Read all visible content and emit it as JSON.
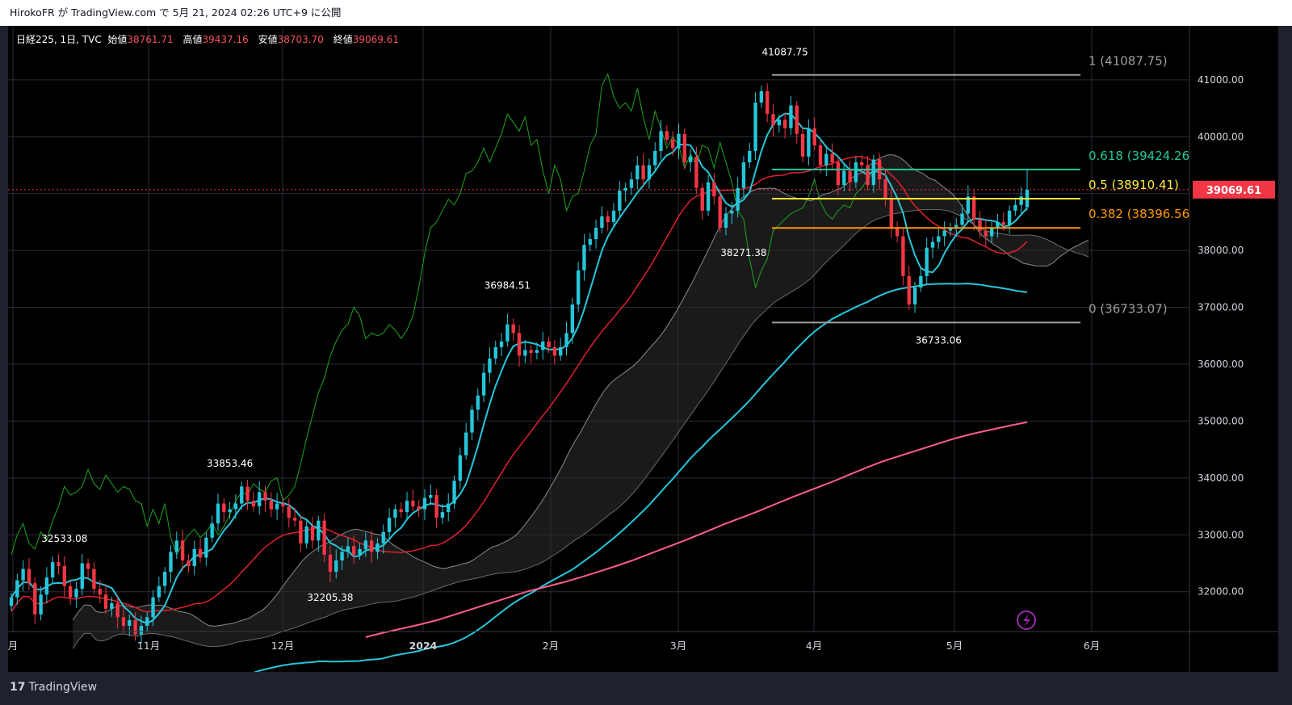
{
  "header": {
    "text": "HirokoFR が TradingView.com で 5月 21, 2024 02:26 UTC+9 に公開"
  },
  "ohlc": {
    "symbol": "日経225, 1日, TVC",
    "open_label": "始値",
    "open": "38761.71",
    "high_label": "高値",
    "high": "39437.16",
    "low_label": "安値",
    "low": "38703.70",
    "close_label": "終値",
    "close": "39069.61"
  },
  "footer": {
    "brand": "TradingView",
    "logo_mark": "17"
  },
  "colors": {
    "background": "#000000",
    "grid": "#2a2e39",
    "up": "#26c6da",
    "down": "#f23645",
    "kijun": "#e0202f",
    "tenkan": "#26c6da",
    "chikou": "#1ea51e",
    "ma_short": "#26c6da",
    "ma_long": "#ff5c8a",
    "fib_1": "#9e9e9e",
    "fib_618": "#22c99a",
    "fib_5": "#ffeb3b",
    "fib_382": "#ff9800",
    "fib_0": "#9e9e9e",
    "price_tag": "#f23645"
  },
  "chart_data": {
    "type": "candlestick",
    "title": "日経225, 1日, TVC",
    "y_axis": {
      "ticks": [
        "41000.00",
        "40000.00",
        "39000.00",
        "38000.00",
        "37000.00",
        "36000.00",
        "35000.00",
        "34000.00",
        "33000.00",
        "32000.00"
      ],
      "range": [
        31300,
        41950
      ]
    },
    "x_axis": {
      "ticks": [
        "月",
        "11月",
        "12月",
        "2024",
        "2月",
        "3月",
        "4月",
        "5月",
        "6月"
      ]
    },
    "last_price": "39069.61",
    "annotations": [
      {
        "text": "41087.75",
        "date_index": 131,
        "price": 41087.75,
        "anchor": "high"
      },
      {
        "text": "38271.38",
        "date_index": 124,
        "price": 38271.38,
        "anchor": "low"
      },
      {
        "text": "36984.51",
        "date_index": 84,
        "price": 36984.51,
        "anchor": "high"
      },
      {
        "text": "33853.46",
        "date_index": 37,
        "price": 33853.46,
        "anchor": "high"
      },
      {
        "text": "32533.08",
        "date_index": 9,
        "price": 32533.08,
        "anchor": "high"
      },
      {
        "text": "32205.38",
        "date_index": 54,
        "price": 32205.38,
        "anchor": "low"
      },
      {
        "text": "36733.06",
        "date_index": 157,
        "price": 36733.06,
        "anchor": "low"
      }
    ],
    "fibonacci": [
      {
        "label": "1 (41087.75)",
        "value": 41087.75,
        "color": "#9e9e9e"
      },
      {
        "label": "0.618 (39424.26",
        "value": 39424.26,
        "color": "#22c99a"
      },
      {
        "label": "0.5 (38910.41)",
        "value": 38910.41,
        "color": "#ffeb3b"
      },
      {
        "label": "0.382 (38396.56",
        "value": 38396.56,
        "color": "#ff9800"
      },
      {
        "label": "0 (36733.07)",
        "value": 36733.07,
        "color": "#9e9e9e"
      }
    ],
    "closes": [
      31900,
      32200,
      32400,
      32150,
      31600,
      31950,
      32250,
      32520,
      32450,
      32100,
      31900,
      32050,
      32500,
      32400,
      32050,
      31950,
      31700,
      31800,
      31550,
      31400,
      31500,
      31250,
      31400,
      31550,
      31900,
      32100,
      32350,
      32700,
      32900,
      32550,
      32450,
      32750,
      32600,
      32950,
      33200,
      33550,
      33400,
      33450,
      33550,
      33850,
      33600,
      33500,
      33750,
      33600,
      33450,
      33550,
      33500,
      33300,
      33250,
      32850,
      33150,
      32900,
      33250,
      32650,
      32350,
      32550,
      32700,
      32800,
      32650,
      32750,
      32900,
      32700,
      32850,
      33050,
      33300,
      33450,
      33400,
      33600,
      33500,
      33450,
      33650,
      33700,
      33300,
      33400,
      33550,
      33950,
      34400,
      34800,
      35200,
      35450,
      35850,
      36100,
      36300,
      36400,
      36700,
      36550,
      36150,
      36250,
      36200,
      36250,
      36400,
      36300,
      36150,
      36300,
      36550,
      37050,
      37650,
      38100,
      38200,
      38400,
      38600,
      38500,
      38700,
      39050,
      39100,
      39250,
      39500,
      39250,
      39500,
      39750,
      40100,
      39950,
      39800,
      40050,
      39550,
      39650,
      39100,
      38700,
      39200,
      38950,
      38400,
      38650,
      38700,
      39100,
      39550,
      39750,
      40600,
      40800,
      40400,
      40200,
      40300,
      40150,
      40550,
      40050,
      39650,
      40150,
      39850,
      39500,
      39700,
      39550,
      39150,
      39400,
      39200,
      39550,
      39500,
      39150,
      39600,
      39250,
      38900,
      38400,
      38250,
      37550,
      37050,
      37350,
      37550,
      38050,
      38150,
      38250,
      38350,
      38400,
      38450,
      38650,
      38950,
      38550,
      38350,
      38250,
      38400,
      38500,
      38450,
      38700,
      38800,
      38950,
      39069.61
    ],
    "ma_long_values": [
      31200,
      31280,
      31350,
      31420,
      31500,
      31600,
      31700,
      31800,
      31900,
      32000,
      32080,
      32160,
      32250,
      32350,
      32450,
      32560,
      32680,
      32800,
      32920,
      33050,
      33180,
      33300,
      33420,
      33550,
      33680,
      33800,
      33920,
      34050,
      34180,
      34300,
      34400,
      34500,
      34600,
      34700,
      34780,
      34850,
      34920,
      34980
    ]
  }
}
